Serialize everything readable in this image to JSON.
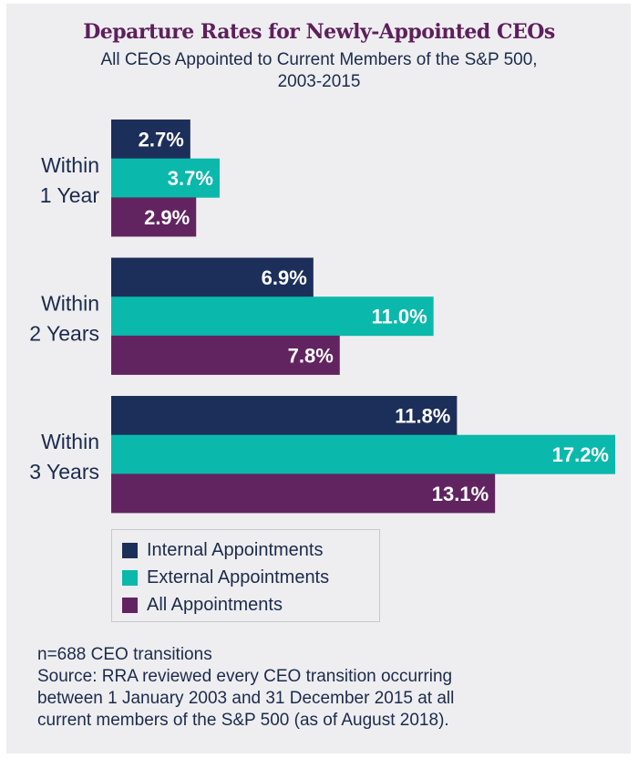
{
  "chart_data": {
    "type": "bar",
    "orientation": "horizontal",
    "title": "Departure Rates for Newly-Appointed CEOs",
    "subtitle_lines": [
      "All CEOs Appointed to Current Members of the S&P 500,",
      "2003-2015"
    ],
    "categories": [
      {
        "lines": [
          "Within",
          "1 Year"
        ]
      },
      {
        "lines": [
          "Within",
          "2 Years"
        ]
      },
      {
        "lines": [
          "Within",
          "3 Years"
        ]
      }
    ],
    "series": [
      {
        "name": "Internal Appointments",
        "color": "#1c2f5a",
        "values": [
          2.7,
          6.9,
          11.8
        ],
        "labels": [
          "2.7%",
          "6.9%",
          "11.8%"
        ]
      },
      {
        "name": "External Appointments",
        "color": "#0bb8ac",
        "values": [
          3.7,
          11.0,
          17.2
        ],
        "labels": [
          "3.7%",
          "11.0%",
          "17.2%"
        ]
      },
      {
        "name": "All Appointments",
        "color": "#622461",
        "values": [
          2.9,
          7.8,
          13.1
        ],
        "labels": [
          "2.9%",
          "7.8%",
          "13.1%"
        ]
      }
    ],
    "xlabel": "",
    "ylabel": "",
    "unit": "%",
    "grid": false,
    "legend_position": "bottom-left",
    "xlim": [
      0,
      17.2
    ]
  },
  "notes": [
    "n=688 CEO transitions",
    "Source: RRA reviewed every CEO transition occurring",
    "between 1 January 2003 and 31 December 2015 at all",
    "current members of the S&P 500 (as of August 2018)."
  ]
}
